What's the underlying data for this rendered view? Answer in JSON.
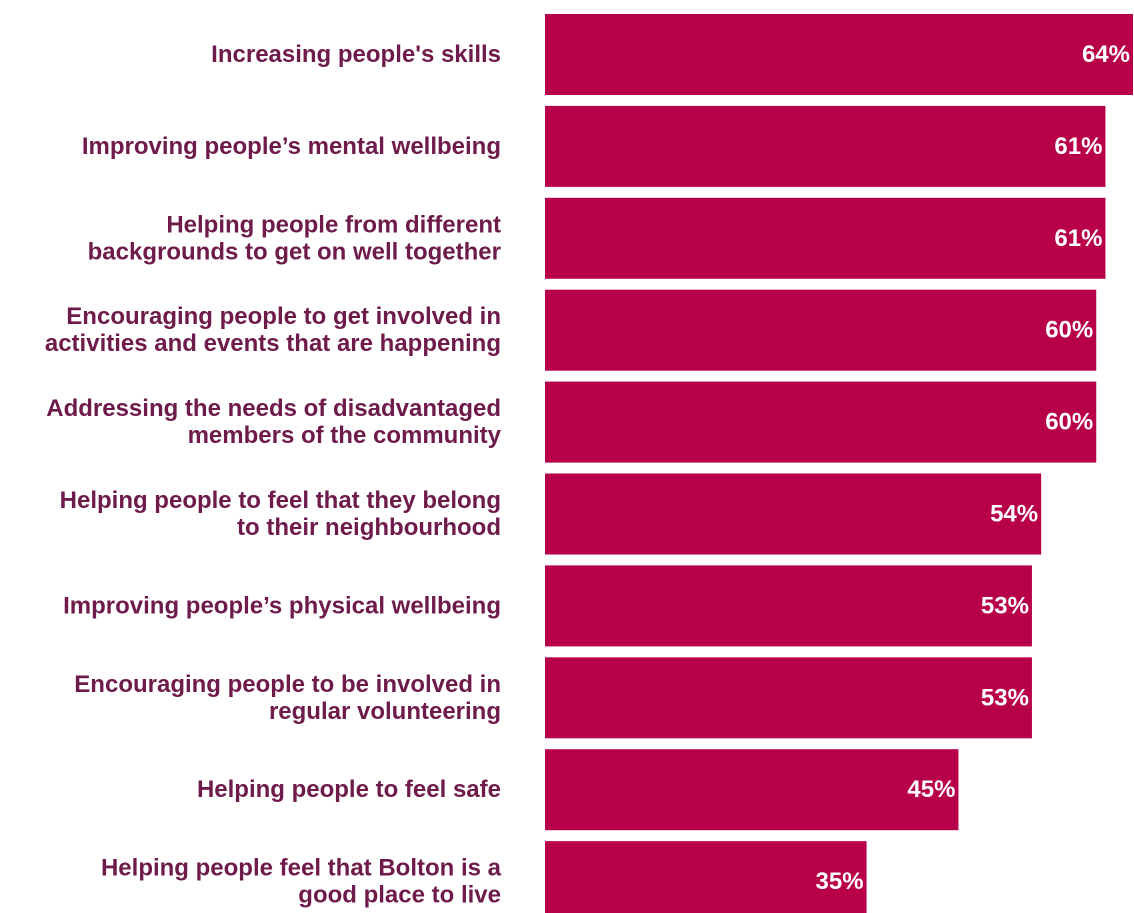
{
  "colors": {
    "bar": "#b8004a",
    "label_text": "#6e1a4a",
    "value_text": "#ffffff"
  },
  "chart_data": {
    "type": "bar",
    "orientation": "horizontal",
    "title": "",
    "xlabel": "",
    "ylabel": "",
    "xlim": [
      0,
      64
    ],
    "grid": false,
    "legend": "none",
    "categories": [
      [
        "Increasing people's skills"
      ],
      [
        "Improving people’s mental wellbeing"
      ],
      [
        "Helping people from different",
        "backgrounds to get on well together"
      ],
      [
        "Encouraging people to get involved in",
        "activities and events that are happening"
      ],
      [
        "Addressing the needs of disadvantaged",
        "members of the community"
      ],
      [
        "Helping people to feel that they belong",
        "to their neighbourhood"
      ],
      [
        "Improving people’s physical wellbeing"
      ],
      [
        "Encouraging people to be involved in",
        "regular volunteering"
      ],
      [
        "Helping people to feel safe"
      ],
      [
        "Helping people feel that Bolton is a",
        "good place to live"
      ]
    ],
    "values": [
      64,
      61,
      61,
      60,
      60,
      54,
      53,
      53,
      45,
      35
    ],
    "value_labels": [
      "64%",
      "61%",
      "61%",
      "60%",
      "60%",
      "54%",
      "53%",
      "53%",
      "45%",
      "35%"
    ]
  }
}
